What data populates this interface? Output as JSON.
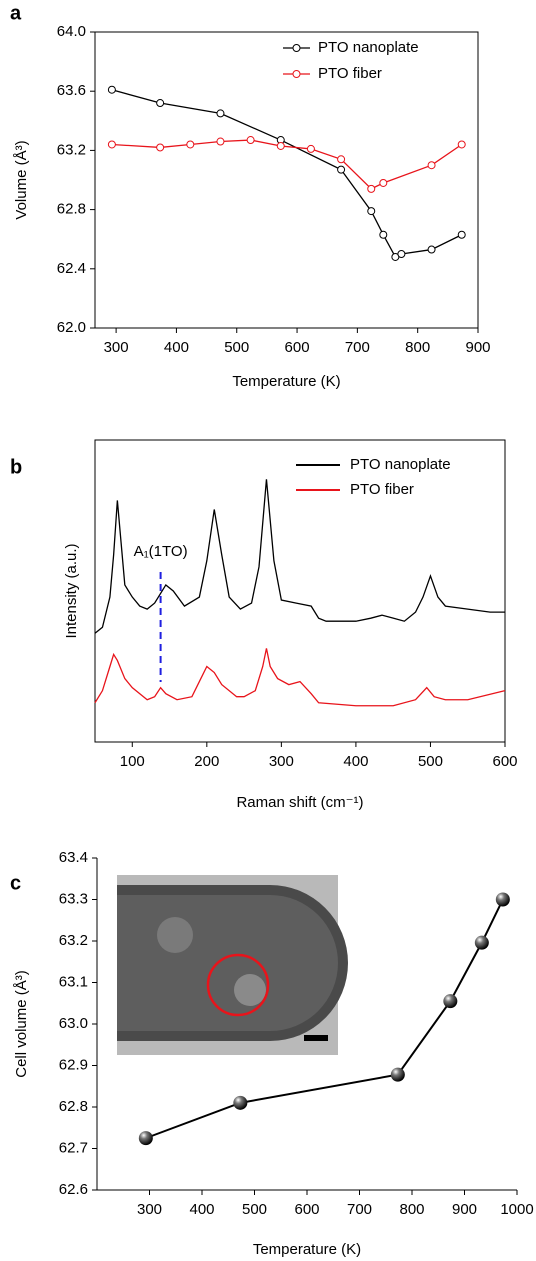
{
  "chart_data": [
    {
      "type": "line",
      "panel_label": "a",
      "xlabel": "Temperature (K)",
      "ylabel": "Volume (Å³)",
      "xlim": [
        265,
        900
      ],
      "xticks": [
        300,
        400,
        500,
        600,
        700,
        800,
        900
      ],
      "ylim": [
        62,
        64
      ],
      "yticks": [
        {
          "value": 62,
          "label": "62.0"
        },
        62.4,
        62.8,
        63.2,
        63.6,
        {
          "value": 64,
          "label": "64.0"
        }
      ],
      "marker": "open-circle",
      "box": true,
      "legend": "top-right",
      "series": [
        {
          "name": "PTO nanoplate",
          "color": "#000000",
          "x": [
            293,
            373,
            473,
            573,
            673,
            723,
            743,
            763,
            773,
            823,
            873
          ],
          "values": [
            63.61,
            63.52,
            63.45,
            63.27,
            63.07,
            62.79,
            62.63,
            62.48,
            62.5,
            62.53,
            62.63
          ]
        },
        {
          "name": "PTO fiber",
          "color": "#e8141b",
          "x": [
            293,
            373,
            423,
            473,
            523,
            573,
            623,
            673,
            723,
            743,
            823,
            873
          ],
          "values": [
            63.24,
            63.22,
            63.24,
            63.26,
            63.27,
            63.23,
            63.21,
            63.14,
            62.94,
            62.98,
            63.1,
            63.24
          ]
        }
      ]
    },
    {
      "type": "line",
      "panel_label": "b",
      "xlabel": "Raman shift (cm⁻¹)",
      "ylabel": "Intensity (a.u.)",
      "xlim": [
        50,
        600
      ],
      "xticks": [
        100,
        200,
        300,
        400,
        500,
        600
      ],
      "ylim": [
        0,
        100
      ],
      "box": true,
      "legend": "top-right",
      "annotations": [
        {
          "text": "A₁(1TO)",
          "x": 138
        }
      ],
      "series": [
        {
          "name": "PTO nanoplate",
          "color": "#000000",
          "x": [
            50,
            60,
            70,
            75,
            80,
            85,
            90,
            100,
            110,
            120,
            130,
            145,
            155,
            170,
            190,
            200,
            210,
            220,
            230,
            245,
            260,
            270,
            280,
            290,
            300,
            320,
            340,
            350,
            360,
            400,
            420,
            435,
            450,
            465,
            480,
            490,
            500,
            510,
            520,
            550,
            580,
            600
          ],
          "values": [
            36,
            38,
            48,
            62,
            80,
            66,
            52,
            48,
            45,
            44,
            46,
            52,
            50,
            45,
            48,
            60,
            77,
            62,
            48,
            44,
            46,
            58,
            87,
            60,
            47,
            46,
            45,
            41,
            40,
            40,
            41,
            42,
            41,
            40,
            43,
            48,
            55,
            48,
            45,
            44,
            43,
            43
          ]
        },
        {
          "name": "PTO fiber",
          "color": "#e8141b",
          "x": [
            50,
            60,
            70,
            75,
            80,
            90,
            100,
            120,
            130,
            138,
            145,
            160,
            180,
            190,
            200,
            210,
            220,
            240,
            250,
            265,
            275,
            280,
            285,
            295,
            310,
            325,
            340,
            350,
            400,
            450,
            480,
            495,
            505,
            520,
            550,
            600
          ],
          "values": [
            13,
            17,
            25,
            29,
            27,
            21,
            18,
            14,
            15,
            18,
            16,
            14,
            15,
            20,
            25,
            23,
            19,
            15,
            15,
            17,
            25,
            31,
            25,
            21,
            19,
            20,
            16,
            13,
            12,
            12,
            14,
            18,
            15,
            14,
            14,
            17
          ]
        }
      ]
    },
    {
      "type": "line",
      "panel_label": "c",
      "xlabel": "Temperature (K)",
      "ylabel": "Cell volume (Å³)",
      "xlim": [
        200,
        1000
      ],
      "xticks": [
        300,
        400,
        500,
        600,
        700,
        800,
        900,
        1000
      ],
      "ylim": [
        62.6,
        63.4
      ],
      "yticks": [
        62.6,
        62.7,
        62.8,
        62.9,
        {
          "value": 63,
          "label": "63.0"
        },
        63.1,
        63.2,
        63.3,
        63.4
      ],
      "marker": "sphere",
      "box": false,
      "series": [
        {
          "color": "#000000",
          "x": [
            293,
            473,
            773,
            873,
            933,
            973
          ],
          "values": [
            62.725,
            62.81,
            62.878,
            63.055,
            63.196,
            63.3
          ]
        }
      ]
    }
  ]
}
